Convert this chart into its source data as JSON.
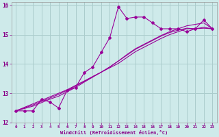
{
  "xlabel": "Windchill (Refroidissement éolien,°C)",
  "background_color": "#ceeaea",
  "grid_color": "#aacccc",
  "line_color": "#990099",
  "x": [
    0,
    1,
    2,
    3,
    4,
    5,
    6,
    7,
    8,
    9,
    10,
    11,
    12,
    13,
    14,
    15,
    16,
    17,
    18,
    19,
    20,
    21,
    22,
    23
  ],
  "y_main": [
    12.4,
    12.4,
    12.4,
    12.8,
    12.7,
    12.5,
    13.1,
    13.2,
    13.7,
    13.9,
    14.4,
    14.9,
    15.95,
    15.55,
    15.6,
    15.6,
    15.4,
    15.2,
    15.2,
    15.2,
    15.1,
    15.2,
    15.5,
    15.2
  ],
  "y_lin1": [
    12.4,
    12.52,
    12.64,
    12.76,
    12.88,
    13.0,
    13.12,
    13.27,
    13.42,
    13.57,
    13.72,
    13.87,
    14.02,
    14.22,
    14.42,
    14.57,
    14.72,
    14.87,
    15.0,
    15.1,
    15.2,
    15.2,
    15.25,
    15.2
  ],
  "y_lin2": [
    12.4,
    12.5,
    12.6,
    12.72,
    12.84,
    12.96,
    13.1,
    13.25,
    13.4,
    13.57,
    13.72,
    13.9,
    14.1,
    14.3,
    14.5,
    14.65,
    14.8,
    14.95,
    15.07,
    15.15,
    15.22,
    15.2,
    15.22,
    15.2
  ],
  "y_lin3": [
    12.4,
    12.48,
    12.56,
    12.68,
    12.8,
    12.9,
    13.05,
    13.2,
    13.38,
    13.55,
    13.72,
    13.9,
    14.1,
    14.32,
    14.52,
    14.67,
    14.82,
    14.97,
    15.1,
    15.2,
    15.3,
    15.35,
    15.4,
    15.2
  ],
  "ylim": [
    12.0,
    16.1
  ],
  "xlim": [
    -0.5,
    23.5
  ],
  "yticks": [
    12,
    13,
    14,
    15,
    16
  ],
  "xticks": [
    0,
    1,
    2,
    3,
    4,
    5,
    6,
    7,
    8,
    9,
    10,
    11,
    12,
    13,
    14,
    15,
    16,
    17,
    18,
    19,
    20,
    21,
    22,
    23
  ]
}
